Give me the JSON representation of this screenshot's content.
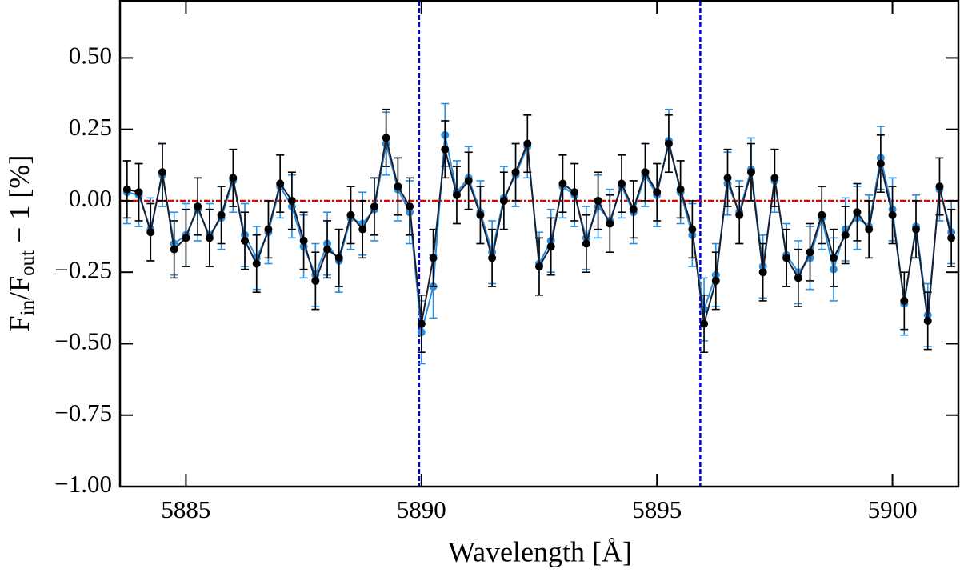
{
  "chart_data": {
    "type": "errorbar",
    "y_label": [
      "F",
      "in",
      "/F",
      "out",
      " − 1 [%]"
    ],
    "x_label": "Wavelength [Å]",
    "xlim": [
      5883.6,
      5901.4
    ],
    "ylim": [
      -1.0,
      0.7
    ],
    "xticks": [
      5885,
      5890,
      5895,
      5900
    ],
    "yticks": [
      {
        "value": -1.0,
        "label": "−1.00"
      },
      {
        "value": -0.75,
        "label": "−0.75"
      },
      {
        "value": -0.5,
        "label": "−0.50"
      },
      {
        "value": -0.25,
        "label": "−0.25"
      },
      {
        "value": 0,
        "label": "0.00"
      },
      {
        "value": 0.25,
        "label": "0.25"
      },
      {
        "value": 0.5,
        "label": "0.50"
      }
    ],
    "vlines": [
      5889.95,
      5895.92
    ],
    "vline_color": "#0000dd",
    "hline": 0,
    "hline_color": "#e00000",
    "x": [
      5883.75,
      5884.0,
      5884.25,
      5884.5,
      5884.75,
      5885.0,
      5885.25,
      5885.5,
      5885.75,
      5886.0,
      5886.25,
      5886.5,
      5886.75,
      5887.0,
      5887.25,
      5887.5,
      5887.75,
      5888.0,
      5888.25,
      5888.5,
      5888.75,
      5889.0,
      5889.25,
      5889.5,
      5889.75,
      5890.0,
      5890.25,
      5890.5,
      5890.75,
      5891.0,
      5891.25,
      5891.5,
      5891.75,
      5892.0,
      5892.25,
      5892.5,
      5892.75,
      5893.0,
      5893.25,
      5893.5,
      5893.75,
      5894.0,
      5894.25,
      5894.5,
      5894.75,
      5895.0,
      5895.25,
      5895.5,
      5895.75,
      5896.0,
      5896.25,
      5896.5,
      5896.75,
      5897.0,
      5897.25,
      5897.5,
      5897.75,
      5898.0,
      5898.25,
      5898.5,
      5898.75,
      5899.0,
      5899.25,
      5899.5,
      5899.75,
      5900.0,
      5900.25,
      5900.5,
      5900.75,
      5901.0,
      5901.25
    ],
    "series": [
      {
        "color": "#2a8fe0",
        "error": 0.11,
        "values": [
          0.03,
          0.02,
          -0.1,
          0.09,
          -0.15,
          -0.12,
          -0.03,
          -0.12,
          -0.06,
          0.07,
          -0.12,
          -0.2,
          -0.11,
          0.05,
          -0.02,
          -0.16,
          -0.26,
          -0.15,
          -0.21,
          -0.06,
          -0.08,
          -0.03,
          0.2,
          0.04,
          -0.04,
          -0.46,
          -0.3,
          0.23,
          0.03,
          0.08,
          -0.04,
          -0.18,
          0.01,
          0.09,
          0.19,
          -0.22,
          -0.14,
          0.05,
          0.02,
          -0.13,
          -0.02,
          -0.07,
          0.05,
          -0.04,
          0.09,
          0.02,
          0.21,
          0.03,
          -0.12,
          -0.38,
          -0.26,
          0.06,
          -0.04,
          0.11,
          -0.23,
          0.07,
          -0.19,
          -0.25,
          -0.2,
          -0.06,
          -0.24,
          -0.1,
          -0.06,
          -0.09,
          0.15,
          -0.03,
          -0.36,
          -0.09,
          -0.4,
          0.04,
          -0.11
        ]
      },
      {
        "color": "#000000",
        "error": 0.1,
        "values": [
          0.04,
          0.03,
          -0.11,
          0.1,
          -0.17,
          -0.13,
          -0.02,
          -0.13,
          -0.05,
          0.08,
          -0.14,
          -0.22,
          -0.1,
          0.06,
          0.0,
          -0.14,
          -0.28,
          -0.17,
          -0.2,
          -0.05,
          -0.1,
          -0.02,
          0.22,
          0.05,
          -0.02,
          -0.43,
          -0.2,
          0.18,
          0.02,
          0.07,
          -0.05,
          -0.2,
          0.0,
          0.1,
          0.2,
          -0.23,
          -0.16,
          0.06,
          0.03,
          -0.15,
          0.0,
          -0.08,
          0.06,
          -0.03,
          0.1,
          0.03,
          0.2,
          0.04,
          -0.1,
          -0.43,
          -0.28,
          0.08,
          -0.05,
          0.1,
          -0.25,
          0.08,
          -0.2,
          -0.27,
          -0.18,
          -0.05,
          -0.2,
          -0.12,
          -0.04,
          -0.1,
          0.13,
          -0.05,
          -0.35,
          -0.1,
          -0.42,
          0.05,
          -0.13
        ]
      }
    ]
  }
}
